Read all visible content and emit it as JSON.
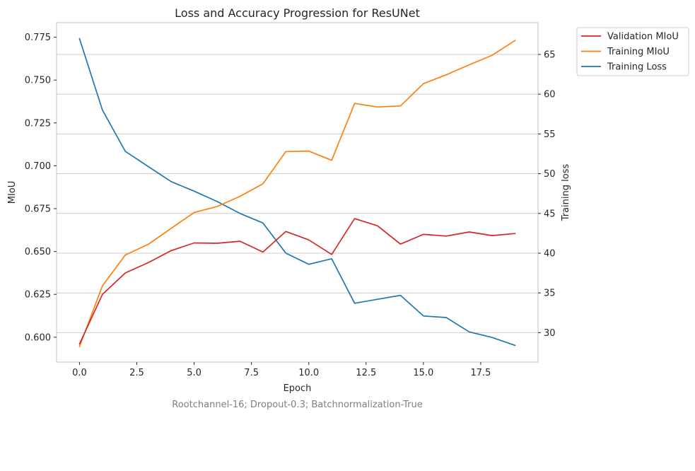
{
  "chart_data": {
    "type": "line",
    "title": "Loss and Accuracy Progression for ResUNet",
    "xlabel": "Epoch",
    "ylabel_left": "MIoU",
    "ylabel_right": "Training loss",
    "caption": "Rootchannel-16; Dropout-0.3; Batchnormalization-True",
    "x": [
      0,
      1,
      2,
      3,
      4,
      5,
      6,
      7,
      8,
      9,
      10,
      11,
      12,
      13,
      14,
      15,
      16,
      17,
      18,
      19
    ],
    "xlim": [
      -1.0,
      20.0
    ],
    "ylim_left": [
      0.5855,
      0.7835
    ],
    "ylim_right": [
      26.3,
      69.0
    ],
    "xticks": [
      "0.0",
      "2.5",
      "5.0",
      "7.5",
      "10.0",
      "12.5",
      "15.0",
      "17.5"
    ],
    "xtick_values": [
      0,
      2.5,
      5,
      7.5,
      10,
      12.5,
      15,
      17.5
    ],
    "yticks_left": [
      "0.600",
      "0.625",
      "0.650",
      "0.675",
      "0.700",
      "0.725",
      "0.750",
      "0.775"
    ],
    "ytick_values_left": [
      0.6,
      0.625,
      0.65,
      0.675,
      0.7,
      0.725,
      0.75,
      0.775
    ],
    "yticks_right": [
      "30",
      "35",
      "40",
      "45",
      "50",
      "55",
      "60",
      "65"
    ],
    "ytick_values_right": [
      30,
      35,
      40,
      45,
      50,
      55,
      60,
      65
    ],
    "grid": "horizontal (right axis)",
    "legend_position": "outside top-right",
    "series": [
      {
        "name": "Validation MIoU",
        "axis": "left",
        "color": "#d62728",
        "values": [
          0.596,
          0.625,
          0.6375,
          0.6435,
          0.6505,
          0.655,
          0.6548,
          0.656,
          0.6497,
          0.6617,
          0.6568,
          0.6483,
          0.6692,
          0.665,
          0.6543,
          0.66,
          0.659,
          0.6614,
          0.6593,
          0.6605
        ]
      },
      {
        "name": "Training MIoU",
        "axis": "left",
        "color": "#ff7f0e",
        "values": [
          0.5945,
          0.63,
          0.648,
          0.6542,
          0.6635,
          0.6728,
          0.6762,
          0.6822,
          0.6895,
          0.7083,
          0.7086,
          0.7032,
          0.7364,
          0.7343,
          0.7349,
          0.7479,
          0.7531,
          0.7589,
          0.7645,
          0.7731
        ]
      },
      {
        "name": "Training Loss",
        "axis": "right",
        "color": "#1f77b4",
        "values": [
          67.0,
          58.0,
          52.8,
          50.9,
          49.0,
          47.8,
          46.5,
          45.0,
          43.8,
          40.0,
          38.6,
          39.3,
          33.7,
          34.2,
          34.7,
          32.1,
          31.9,
          30.1,
          29.4,
          28.4
        ]
      }
    ]
  }
}
